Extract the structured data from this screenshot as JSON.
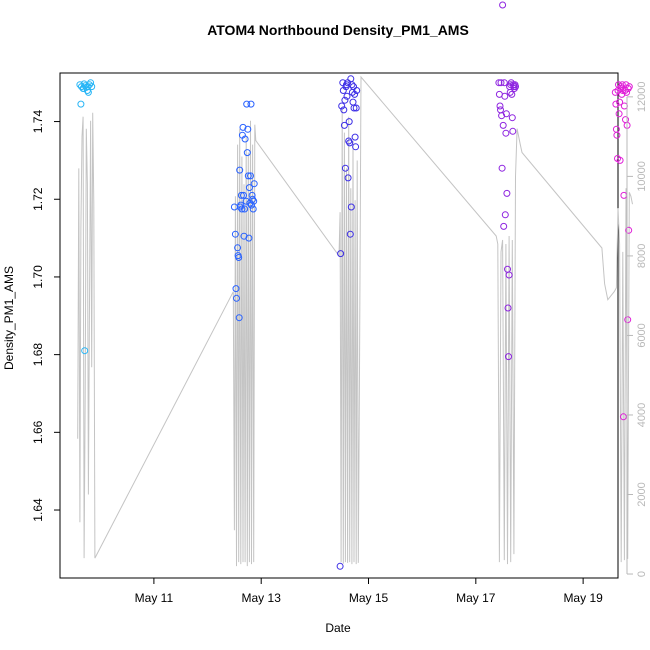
{
  "chart_data": {
    "type": "scatter",
    "title": "ATOM4 Northbound Density_PM1_AMS",
    "xlabel": "Date",
    "ylabel": "Density_PM1_AMS",
    "ylabel_right": "",
    "xlim": [
      9.25,
      19.65
    ],
    "ylim": [
      1.6225,
      1.7525
    ],
    "y2lim": [
      -100,
      12600
    ],
    "x_ticks": [
      {
        "value": 11,
        "label": "May 11"
      },
      {
        "value": 13,
        "label": "May 13"
      },
      {
        "value": 15,
        "label": "May 15"
      },
      {
        "value": 17,
        "label": "May 17"
      },
      {
        "value": 19,
        "label": "May 19"
      }
    ],
    "y_ticks": [
      1.64,
      1.66,
      1.68,
      1.7,
      1.72,
      1.74
    ],
    "y2_ticks": [
      0,
      2000,
      4000,
      6000,
      8000,
      10000,
      12000
    ],
    "grid": false,
    "legend": "none",
    "colors": {
      "line": "#c4c4c4",
      "axis": "#000000",
      "right_axis": "#b8b8b8"
    },
    "series": [
      {
        "color": "#29b6f6",
        "points": [
          [
            9.62,
            1.7495
          ],
          [
            9.65,
            1.749
          ],
          [
            9.68,
            1.7485
          ],
          [
            9.7,
            1.7497
          ],
          [
            9.72,
            1.7492
          ],
          [
            9.74,
            1.7488
          ],
          [
            9.76,
            1.748
          ],
          [
            9.78,
            1.7475
          ],
          [
            9.8,
            1.7495
          ],
          [
            9.82,
            1.75
          ],
          [
            9.84,
            1.749
          ],
          [
            9.64,
            1.7445
          ],
          [
            9.71,
            1.681
          ],
          [
            9.69,
            1.7485
          ],
          [
            9.77,
            1.749
          ]
        ]
      },
      {
        "color": "#2962ff",
        "points": [
          [
            12.5,
            1.718
          ],
          [
            12.52,
            1.711
          ],
          [
            12.53,
            1.697
          ],
          [
            12.54,
            1.6945
          ],
          [
            12.56,
            1.7075
          ],
          [
            12.57,
            1.7055
          ],
          [
            12.58,
            1.705
          ],
          [
            12.59,
            1.6895
          ],
          [
            12.6,
            1.7275
          ],
          [
            12.61,
            1.718
          ],
          [
            12.62,
            1.7185
          ],
          [
            12.63,
            1.721
          ],
          [
            12.64,
            1.7175
          ],
          [
            12.65,
            1.7365
          ],
          [
            12.66,
            1.7385
          ],
          [
            12.67,
            1.721
          ],
          [
            12.68,
            1.7105
          ],
          [
            12.69,
            1.7175
          ],
          [
            12.7,
            1.7355
          ],
          [
            12.72,
            1.7195
          ],
          [
            12.73,
            1.7445
          ],
          [
            12.74,
            1.732
          ],
          [
            12.75,
            1.738
          ],
          [
            12.76,
            1.726
          ],
          [
            12.77,
            1.71
          ],
          [
            12.78,
            1.723
          ],
          [
            12.79,
            1.719
          ],
          [
            12.8,
            1.726
          ],
          [
            12.81,
            1.7445
          ],
          [
            12.82,
            1.7185
          ],
          [
            12.83,
            1.721
          ],
          [
            12.84,
            1.72
          ],
          [
            12.85,
            1.7175
          ],
          [
            12.86,
            1.7195
          ],
          [
            12.87,
            1.724
          ]
        ]
      },
      {
        "color": "#3d2fe6",
        "points": [
          [
            14.47,
            1.6255
          ],
          [
            14.48,
            1.706
          ],
          [
            14.5,
            1.744
          ],
          [
            14.52,
            1.75
          ],
          [
            14.53,
            1.748
          ],
          [
            14.54,
            1.743
          ],
          [
            14.55,
            1.739
          ],
          [
            14.56,
            1.7455
          ],
          [
            14.57,
            1.728
          ],
          [
            14.58,
            1.749
          ],
          [
            14.59,
            1.7495
          ],
          [
            14.6,
            1.7465
          ],
          [
            14.61,
            1.75
          ],
          [
            14.62,
            1.7255
          ],
          [
            14.63,
            1.735
          ],
          [
            14.64,
            1.74
          ],
          [
            14.65,
            1.7345
          ],
          [
            14.66,
            1.711
          ],
          [
            14.67,
            1.751
          ],
          [
            14.68,
            1.718
          ],
          [
            14.69,
            1.7495
          ],
          [
            14.7,
            1.7475
          ],
          [
            14.71,
            1.745
          ],
          [
            14.72,
            1.749
          ],
          [
            14.73,
            1.7435
          ],
          [
            14.74,
            1.747
          ],
          [
            14.75,
            1.736
          ],
          [
            14.76,
            1.7335
          ],
          [
            14.77,
            1.7435
          ],
          [
            14.78,
            1.748
          ]
        ]
      },
      {
        "color": "#8e24e0",
        "points": [
          [
            17.43,
            1.75
          ],
          [
            17.44,
            1.747
          ],
          [
            17.45,
            1.744
          ],
          [
            17.46,
            1.743
          ],
          [
            17.47,
            1.75
          ],
          [
            17.48,
            1.7415
          ],
          [
            17.49,
            1.728
          ],
          [
            17.5,
            1.77
          ],
          [
            17.51,
            1.739
          ],
          [
            17.52,
            1.713
          ],
          [
            17.53,
            1.75
          ],
          [
            17.54,
            1.7465
          ],
          [
            17.55,
            1.716
          ],
          [
            17.56,
            1.737
          ],
          [
            17.57,
            1.742
          ],
          [
            17.58,
            1.7215
          ],
          [
            17.59,
            1.702
          ],
          [
            17.6,
            1.692
          ],
          [
            17.61,
            1.6795
          ],
          [
            17.62,
            1.7005
          ],
          [
            17.63,
            1.749
          ],
          [
            17.64,
            1.7475
          ],
          [
            17.65,
            1.7495
          ],
          [
            17.66,
            1.75
          ],
          [
            17.67,
            1.747
          ],
          [
            17.68,
            1.741
          ],
          [
            17.69,
            1.7375
          ],
          [
            17.7,
            1.7495
          ],
          [
            17.71,
            1.749
          ],
          [
            17.72,
            1.7485
          ],
          [
            17.73,
            1.7495
          ],
          [
            17.74,
            1.749
          ]
        ]
      },
      {
        "color": "#e020d8",
        "points": [
          [
            19.6,
            1.7475
          ],
          [
            19.61,
            1.7445
          ],
          [
            19.62,
            1.738
          ],
          [
            19.63,
            1.7365
          ],
          [
            19.64,
            1.7305
          ],
          [
            19.65,
            1.748
          ],
          [
            19.66,
            1.7495
          ],
          [
            19.67,
            1.742
          ],
          [
            19.68,
            1.745
          ],
          [
            19.69,
            1.73
          ],
          [
            19.7,
            1.7485
          ],
          [
            19.71,
            1.749
          ],
          [
            19.72,
            1.747
          ],
          [
            19.73,
            1.7495
          ],
          [
            19.74,
            1.748
          ],
          [
            19.75,
            1.664
          ],
          [
            19.76,
            1.721
          ],
          [
            19.77,
            1.744
          ],
          [
            19.78,
            1.748
          ],
          [
            19.79,
            1.7405
          ],
          [
            19.8,
            1.7495
          ],
          [
            19.81,
            1.7475
          ],
          [
            19.82,
            1.739
          ],
          [
            19.83,
            1.689
          ],
          [
            19.84,
            1.7485
          ],
          [
            19.85,
            1.712
          ],
          [
            19.86,
            1.749
          ]
        ]
      }
    ],
    "line_series": {
      "axis": "right",
      "x": [
        9.58,
        9.6,
        9.62,
        9.64,
        9.66,
        9.68,
        9.7,
        9.72,
        9.74,
        9.76,
        9.78,
        9.8,
        9.82,
        9.84,
        9.86,
        9.88,
        9.9,
        12.48,
        12.5,
        12.52,
        12.54,
        12.56,
        12.58,
        12.6,
        12.62,
        12.64,
        12.66,
        12.68,
        12.7,
        12.72,
        12.74,
        12.76,
        12.78,
        12.8,
        12.82,
        12.84,
        12.86,
        12.88,
        12.9,
        14.45,
        14.47,
        14.49,
        14.51,
        14.53,
        14.55,
        14.57,
        14.59,
        14.61,
        14.63,
        14.65,
        14.67,
        14.69,
        14.71,
        14.73,
        14.75,
        14.77,
        14.79,
        14.81,
        14.83,
        14.86,
        17.38,
        17.41,
        17.44,
        17.47,
        17.5,
        17.53,
        17.56,
        17.59,
        17.62,
        17.65,
        17.68,
        17.71,
        17.74,
        17.77,
        17.8,
        17.83,
        17.86,
        19.35,
        19.4,
        19.46,
        19.52,
        19.58,
        19.62,
        19.65,
        19.68,
        19.71,
        19.74,
        19.77,
        19.8,
        19.83,
        19.86,
        19.89,
        19.92
      ],
      "y": [
        3400,
        10200,
        1300,
        8700,
        11000,
        11500,
        400,
        4500,
        11200,
        9800,
        2000,
        6800,
        11400,
        5200,
        11600,
        9300,
        400,
        7100,
        1100,
        9500,
        200,
        10800,
        300,
        11200,
        250,
        10500,
        300,
        9800,
        300,
        11000,
        200,
        10600,
        300,
        11400,
        250,
        10800,
        300,
        11300,
        10900,
        8000,
        9100,
        300,
        11700,
        260,
        11100,
        300,
        10200,
        280,
        11500,
        300,
        9700,
        250,
        10900,
        300,
        9400,
        250,
        10400,
        280,
        4600,
        12500,
        8500,
        8300,
        300,
        8100,
        8400,
        350,
        8300,
        250,
        8500,
        300,
        8400,
        500,
        10000,
        11200,
        11000,
        10800,
        10600,
        8200,
        7300,
        6900,
        7000,
        7100,
        7200,
        9200,
        8300,
        300,
        8100,
        350,
        9700,
        380,
        9600,
        9500,
        9300
      ]
    }
  }
}
